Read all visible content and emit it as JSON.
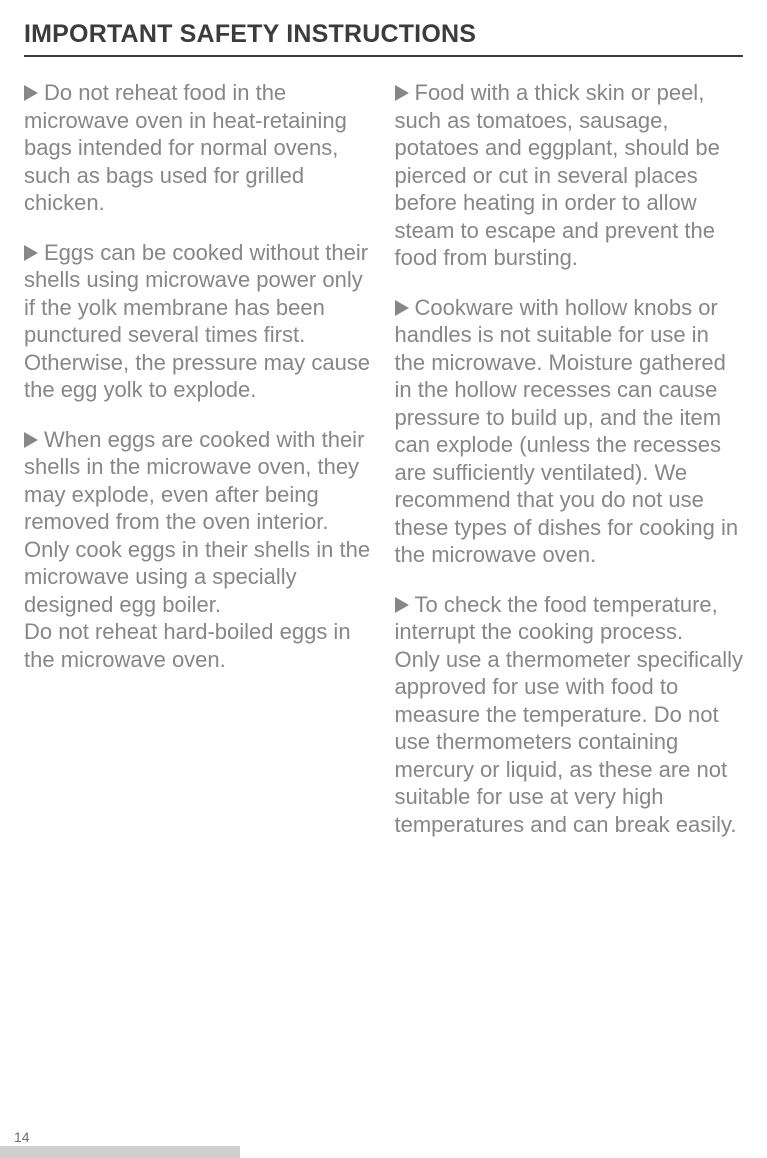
{
  "title": "IMPORTANT SAFETY INSTRUCTIONS",
  "left": {
    "p1": "Do not reheat food in the microwave oven in heat-retaining bags intended for normal ovens, such as bags used for grilled chicken.",
    "p2": "Eggs can be cooked without their shells using microwave power only if the yolk membrane has been punctured several times first. Otherwise, the pressure may cause the egg yolk to explode.",
    "p3a": "When eggs are cooked with their shells in the microwave oven, they may explode, even after being removed from the oven interior. Only cook eggs in their shells in the microwave using a specially designed egg boiler.",
    "p3b": "Do not reheat hard-boiled eggs in the microwave oven."
  },
  "right": {
    "p1": "Food with a thick skin or peel, such as tomatoes, sausage, potatoes and eggplant, should be pierced or cut in several places before heating in order to allow steam to escape and prevent the food from bursting.",
    "p2": "Cookware with hollow knobs or handles is not suitable for use in the microwave. Moisture gathered in the hollow recesses can cause pressure to build up, and the item can explode (unless the recesses are sufficiently ventilated). We recommend that you do not use these types of dishes for cooking in the microwave oven.",
    "p3a": "To check the food temperature, interrupt the cooking process.",
    "p3b": "Only use a thermometer specifically approved for use with food to measure the temperature. Do not use thermometers containing mercury or liquid, as these are not suitable for use at very high temperatures and can break easily."
  },
  "pageNumber": "14"
}
